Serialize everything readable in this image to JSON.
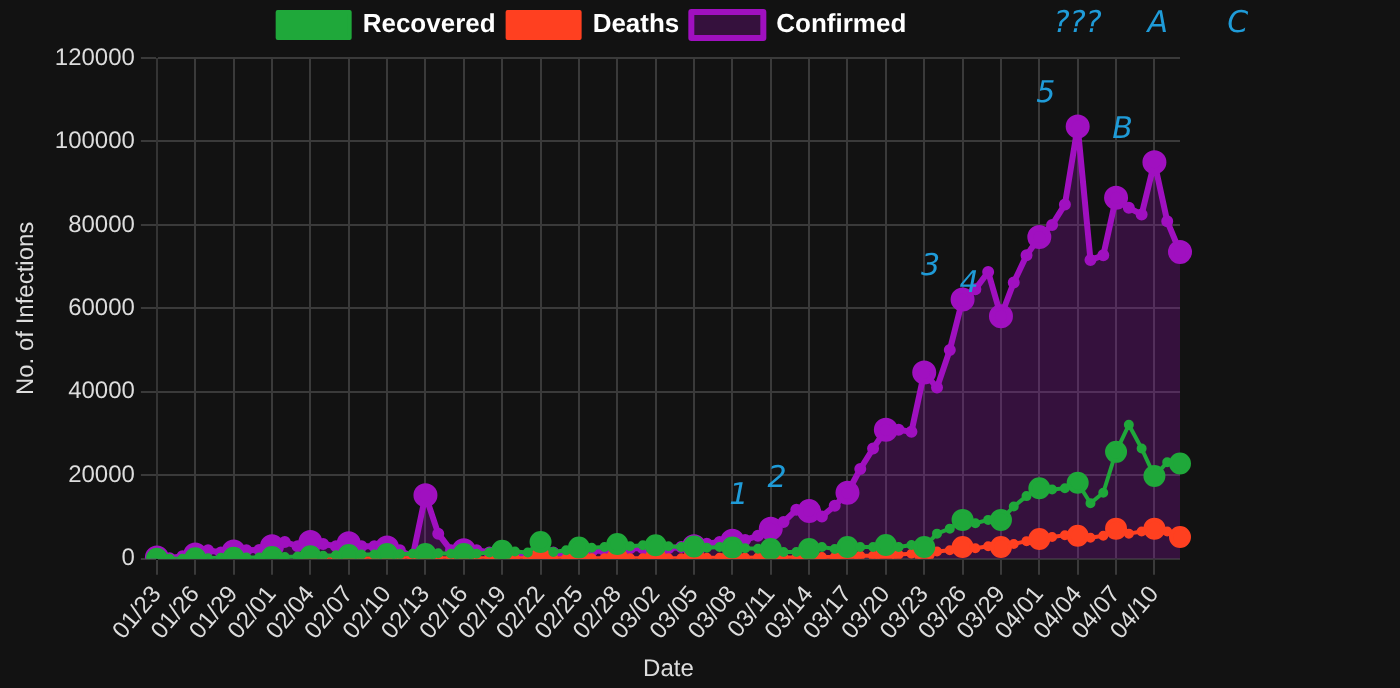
{
  "chart_data": {
    "type": "line",
    "xlabel": "Date",
    "ylabel": "No. of Infections",
    "categories": [
      "01/23",
      null,
      null,
      "01/26",
      null,
      null,
      "01/29",
      null,
      null,
      "02/01",
      null,
      null,
      "02/04",
      null,
      null,
      "02/07",
      null,
      null,
      "02/10",
      null,
      null,
      "02/13",
      null,
      null,
      "02/16",
      null,
      null,
      "02/19",
      null,
      null,
      "02/22",
      null,
      null,
      "02/25",
      null,
      null,
      "02/28",
      null,
      null,
      "03/02",
      null,
      null,
      "03/05",
      null,
      null,
      "03/08",
      null,
      null,
      "03/11",
      null,
      null,
      "03/14",
      null,
      null,
      "03/17",
      null,
      null,
      "03/20",
      null,
      null,
      "03/23",
      null,
      null,
      "03/26",
      null,
      null,
      "03/29",
      null,
      null,
      "04/01",
      null,
      null,
      "04/04",
      null,
      null,
      "04/07",
      null,
      null,
      "04/10",
      null,
      null
    ],
    "series": [
      {
        "name": "Recovered",
        "color": "#1fa83a",
        "values": [
          0,
          0,
          0,
          100,
          100,
          200,
          200,
          300,
          300,
          400,
          400,
          500,
          600,
          700,
          800,
          900,
          1000,
          1000,
          1100,
          1100,
          1200,
          1100,
          1300,
          1200,
          1100,
          1200,
          1500,
          1900,
          1700,
          1500,
          4000,
          1600,
          2000,
          2700,
          2600,
          2800,
          3500,
          3000,
          3200,
          3200,
          3000,
          2800,
          2900,
          2600,
          2800,
          2700,
          2500,
          2400,
          2300,
          1600,
          1600,
          2300,
          2800,
          2300,
          2800,
          2800,
          2800,
          3300,
          2800,
          3300,
          2800,
          6000,
          7200,
          9300,
          8500,
          9300,
          9300,
          12500,
          15000,
          16900,
          16600,
          16900,
          18200,
          13300,
          15800,
          25600,
          32100,
          26400,
          19800,
          23100,
          22800
        ]
      },
      {
        "name": "Deaths",
        "color": "#ff4020",
        "values": [
          null,
          null,
          null,
          null,
          null,
          null,
          null,
          null,
          null,
          null,
          null,
          null,
          100,
          100,
          100,
          100,
          100,
          100,
          100,
          100,
          100,
          200,
          100,
          100,
          100,
          100,
          100,
          100,
          100,
          100,
          100,
          100,
          100,
          100,
          100,
          100,
          100,
          100,
          100,
          100,
          100,
          100,
          100,
          200,
          200,
          200,
          200,
          300,
          300,
          300,
          300,
          300,
          400,
          400,
          500,
          700,
          700,
          800,
          1000,
          1200,
          1500,
          1700,
          2000,
          2800,
          2500,
          3000,
          2800,
          3500,
          4200,
          4700,
          5200,
          5600,
          5500,
          5000,
          5500,
          7200,
          6000,
          6500,
          7200,
          6500,
          5200
        ]
      },
      {
        "name": "Confirmed",
        "type": "area",
        "color": "#a010c0",
        "values": [
          300,
          100,
          600,
          1000,
          2000,
          1500,
          1700,
          2000,
          2100,
          3000,
          4000,
          3000,
          4000,
          3500,
          3000,
          3700,
          3000,
          3000,
          2700,
          2000,
          500,
          15200,
          6000,
          2000,
          2000,
          2000,
          1500,
          1000,
          1000,
          800,
          1000,
          1500,
          1000,
          1500,
          1800,
          2000,
          2000,
          2500,
          2500,
          2000,
          2500,
          2800,
          3000,
          3600,
          4000,
          4300,
          4500,
          5500,
          7200,
          8800,
          11700,
          11400,
          10100,
          12700,
          15800,
          21500,
          26400,
          30900,
          30900,
          30400,
          44600,
          41000,
          50000,
          62100,
          64600,
          68700,
          58100,
          66200,
          72700,
          77100,
          80000,
          84900,
          103600,
          71600,
          72700,
          86500,
          84100,
          82500,
          95000,
          80900,
          73500
        ]
      }
    ],
    "ylim": [
      0,
      120000
    ],
    "yticks": [
      0,
      20000,
      40000,
      60000,
      80000,
      100000,
      120000
    ],
    "grid": true,
    "legend": "top",
    "marker": "circle",
    "annotations": [
      "???",
      "A",
      "C",
      {
        "text": "1",
        "x": "03/11",
        "y": 7200
      },
      {
        "text": "2",
        "x": "03/14",
        "y": 11400
      },
      {
        "text": "3",
        "x": "03/26",
        "y": 62100
      },
      {
        "text": "4",
        "x": "03/29",
        "y": 58100
      },
      {
        "text": "5",
        "x": "04/04",
        "y": 103600
      },
      {
        "text": "B",
        "x": "04/10",
        "y": 95000
      }
    ]
  }
}
